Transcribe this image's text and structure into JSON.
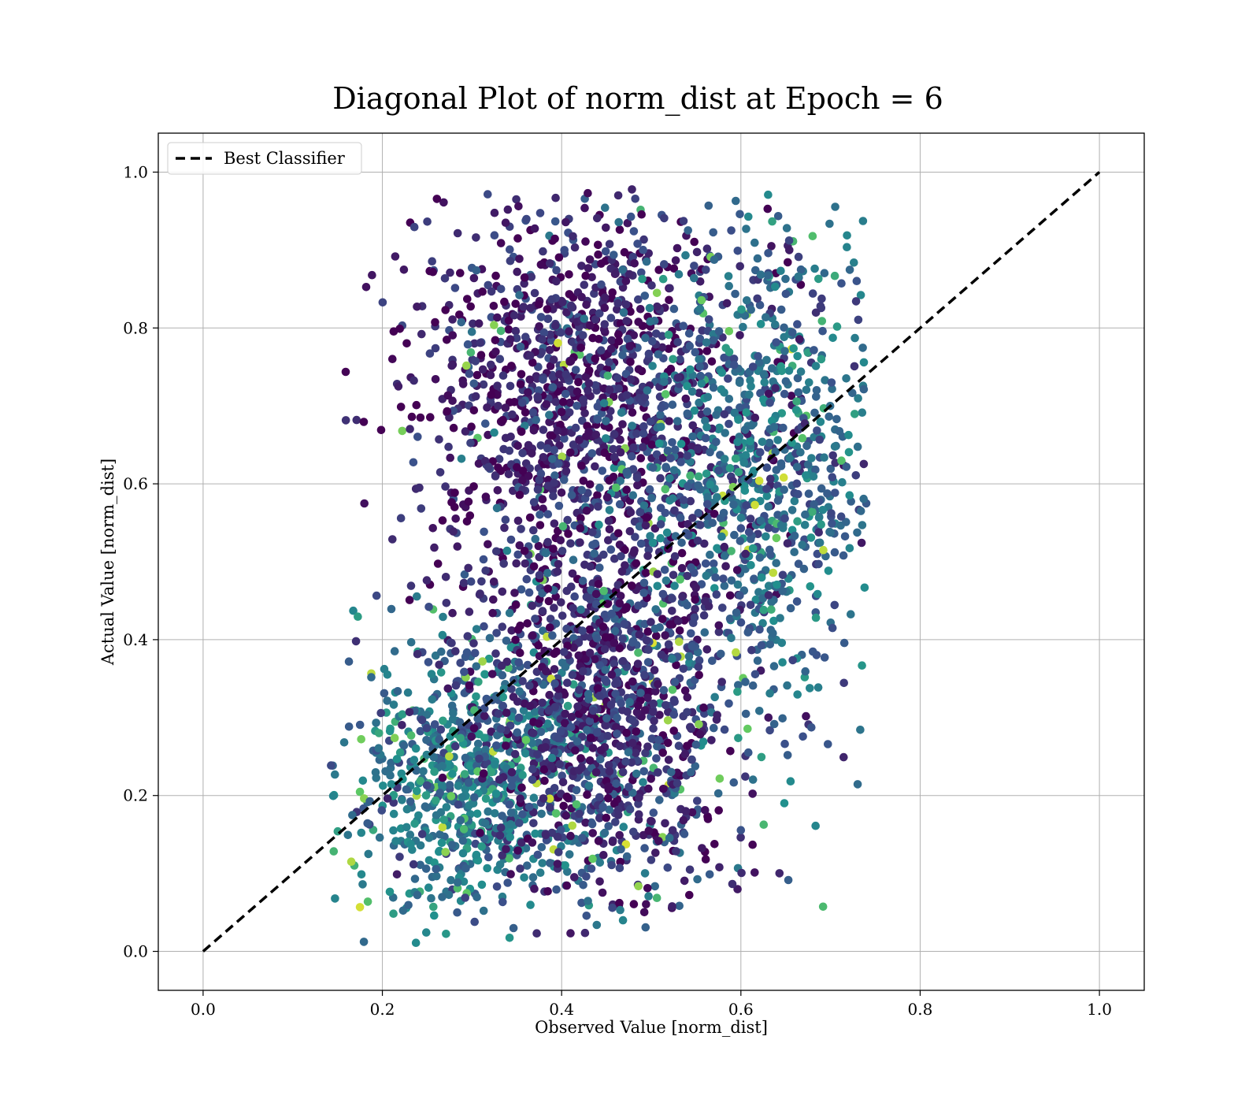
{
  "chart_data": {
    "type": "scatter",
    "title": "Diagonal Plot of norm_dist at Epoch = 6",
    "xlabel": "Observed Value [norm_dist]",
    "ylabel": "Actual Value [norm_dist]",
    "xlim": [
      -0.05,
      1.05
    ],
    "ylim": [
      -0.05,
      1.05
    ],
    "x_ticks": [
      "0.0",
      "0.2",
      "0.4",
      "0.6",
      "0.8",
      "1.0"
    ],
    "y_ticks": [
      "0.0",
      "0.2",
      "0.4",
      "0.6",
      "0.8",
      "1.0"
    ],
    "grid": true,
    "legend": {
      "placement": "top-left",
      "entries": [
        "Best Classifier"
      ]
    },
    "reference_line": {
      "name": "Best Classifier",
      "x": [
        0.0,
        1.0
      ],
      "y": [
        0.0,
        1.0
      ],
      "style": "dashed",
      "color": "#000000"
    },
    "colormap": [
      "#440154",
      "#3b528b",
      "#21908d",
      "#5dc963",
      "#fde725"
    ],
    "point_clusters": [
      {
        "x_center": 0.42,
        "y_center": 0.72,
        "x_spread": 0.09,
        "y_spread": 0.13,
        "share": 0.3,
        "color_level": 0.1
      },
      {
        "x_center": 0.62,
        "y_center": 0.62,
        "x_spread": 0.07,
        "y_spread": 0.16,
        "share": 0.22,
        "color_level": 0.35
      },
      {
        "x_center": 0.3,
        "y_center": 0.22,
        "x_spread": 0.07,
        "y_spread": 0.09,
        "share": 0.2,
        "color_level": 0.4
      },
      {
        "x_center": 0.45,
        "y_center": 0.32,
        "x_spread": 0.07,
        "y_spread": 0.13,
        "share": 0.28,
        "color_level": 0.15
      }
    ]
  }
}
